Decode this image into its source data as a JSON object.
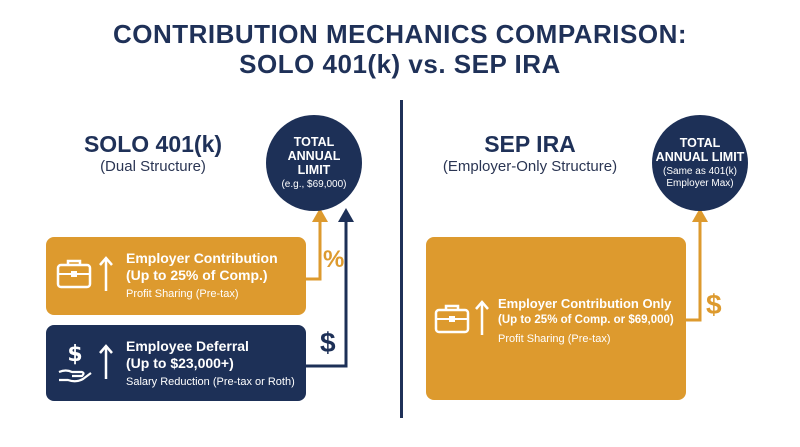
{
  "title": {
    "line1": "CONTRIBUTION MECHANICS COMPARISON:",
    "line2": "SOLO 401(k) vs. SEP IRA"
  },
  "left": {
    "heading": "SOLO 401(k)",
    "subheading": "(Dual Structure)",
    "limit_circle": {
      "title": "TOTAL ANNUAL LIMIT",
      "line1": "TOTAL",
      "line2": "ANNUAL",
      "line3": "LIMIT",
      "subtitle": "(e.g., $69,000)"
    },
    "employer_box": {
      "title_line1": "Employer Contribution",
      "title_line2": "(Up to 25% of Comp.)",
      "subtitle": "Profit Sharing (Pre-tax)"
    },
    "employee_box": {
      "title_line1": "Employee Deferral",
      "title_line2": "(Up to $23,000+)",
      "subtitle": "Salary Reduction (Pre-tax or Roth)"
    },
    "percent_symbol": "%",
    "dollar_symbol": "$"
  },
  "right": {
    "heading": "SEP IRA",
    "subheading": "(Employer-Only Structure)",
    "limit_circle": {
      "line1": "TOTAL",
      "line2": "ANNUAL LIMIT",
      "sub1": "(Same as 401(k)",
      "sub2": "Employer Max)"
    },
    "employer_box": {
      "title_line1": "Employer Contribution Only",
      "title_line2": "(Up to 25% of Comp. or $69,000)",
      "subtitle": "Profit Sharing (Pre-tax)"
    },
    "dollar_symbol": "$"
  },
  "colors": {
    "navy": "#1d3057",
    "gold": "#dd9a2e",
    "background": "#ffffff"
  },
  "icons": [
    "briefcase-icon",
    "arrow-up-icon",
    "dollar-hand-icon"
  ]
}
